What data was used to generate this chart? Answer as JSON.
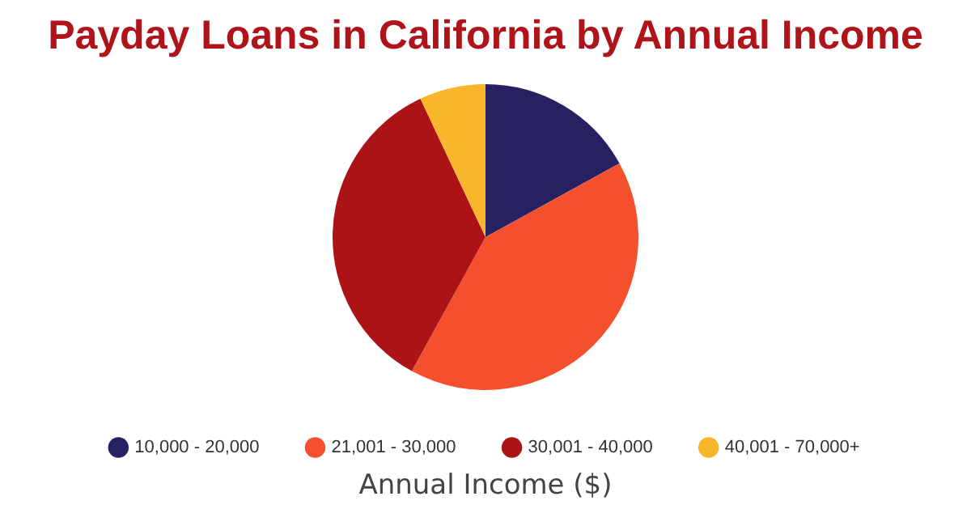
{
  "chart_data": {
    "type": "pie",
    "title": "Payday Loans in California by Annual Income",
    "xlabel": "Annual Income ($)",
    "categories": [
      "10,000 - 20,000",
      "21,001 - 30,000",
      "30,001 - 40,000",
      "40,001 - 70,000+"
    ],
    "values": [
      17,
      41,
      35,
      7
    ],
    "colors": [
      "#262262",
      "#f4502d",
      "#ab1317",
      "#f8b62a"
    ],
    "legend": "bottom"
  }
}
